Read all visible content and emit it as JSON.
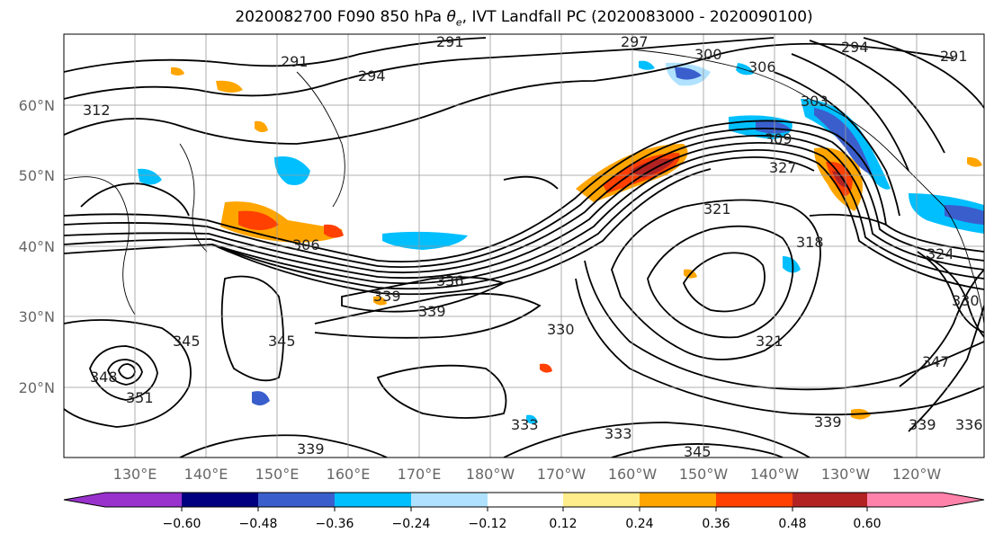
{
  "title": {
    "main": "2020082700 F090 850 hPa ",
    "symbol_base": "θ",
    "symbol_sub": "e",
    "rest": ", IVT Landfall PC (2020083000 - 2020090100)"
  },
  "map": {
    "lon_ticks": [
      "130°E",
      "140°E",
      "150°E",
      "160°E",
      "170°E",
      "180°W",
      "170°W",
      "160°W",
      "150°W",
      "140°W",
      "130°W",
      "120°W"
    ],
    "lat_ticks": [
      "60°N",
      "50°N",
      "40°N",
      "30°N",
      "20°N"
    ],
    "contour_labels": [
      "291",
      "297",
      "300",
      "306",
      "294",
      "291",
      "291",
      "294",
      "312",
      "303",
      "309",
      "327",
      "321",
      "318",
      "324",
      "306",
      "339",
      "336",
      "339",
      "330",
      "321",
      "345",
      "348",
      "351",
      "345",
      "333",
      "345",
      "339",
      "347",
      "336",
      "339",
      "333",
      "339",
      "330"
    ]
  },
  "colorbar": {
    "colors": [
      "#9932cc",
      "#000080",
      "#3a5fcd",
      "#00bfff",
      "#b0e2ff",
      "#ffffff",
      "#ffec8b",
      "#ffa500",
      "#ff4000",
      "#b22222",
      "#ff82ab"
    ],
    "tick_labels": [
      "−0.60",
      "−0.48",
      "−0.36",
      "−0.24",
      "−0.12",
      "0.12",
      "0.24",
      "0.36",
      "0.48",
      "0.60"
    ]
  },
  "colors": {
    "contour": "#000000",
    "grid": "#999999",
    "frame": "#000000"
  }
}
